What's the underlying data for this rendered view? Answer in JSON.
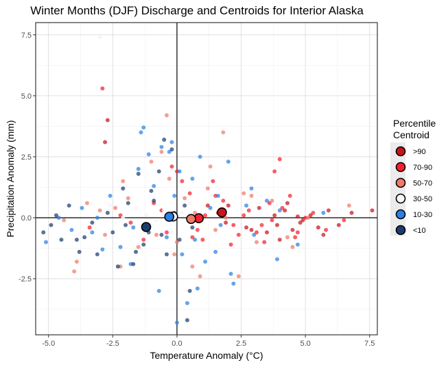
{
  "chart_data": {
    "type": "scatter",
    "title": "Winter Months (DJF) Discharge and Centroids for Interior Alaska",
    "xlabel": "Temperature Anomaly (°C)",
    "ylabel": "Precipitation Anomaly (mm)",
    "xlim": [
      -5.5,
      7.8
    ],
    "ylim": [
      -4.8,
      8.0
    ],
    "x_ticks": [
      -5.0,
      -2.5,
      0.0,
      2.5,
      5.0,
      7.5
    ],
    "x_tick_labels": [
      "-5.0",
      "-2.5",
      "0.0",
      "2.5",
      "5.0",
      "7.5"
    ],
    "y_ticks": [
      -2.5,
      0.0,
      2.5,
      5.0,
      7.5
    ],
    "y_tick_labels": [
      "-2.5",
      "0.0",
      "2.5",
      "5.0",
      "7.5"
    ],
    "grid": true,
    "legend": {
      "title_line1": "Percentile",
      "title_line2": "Centroid",
      "position": "right",
      "entries": [
        {
          "label": ">90",
          "color": "#c8141c"
        },
        {
          "label": "70-90",
          "color": "#f5202c"
        },
        {
          "label": "50-70",
          "color": "#f07a6a"
        },
        {
          "label": "30-50",
          "color": "#f2f6fb"
        },
        {
          "label": "10-30",
          "color": "#2b7fe6"
        },
        {
          "label": "<10",
          "color": "#1c3d6e"
        }
      ]
    },
    "centroids": [
      {
        "category": ">90",
        "x": 1.75,
        "y": 0.22
      },
      {
        "category": "70-90",
        "x": 0.85,
        "y": -0.02
      },
      {
        "category": "50-70",
        "x": 0.55,
        "y": -0.05
      },
      {
        "category": "30-50",
        "x": -0.15,
        "y": 0.05
      },
      {
        "category": "10-30",
        "x": -0.3,
        "y": 0.04
      },
      {
        "category": "<10",
        "x": -1.2,
        "y": -0.38
      }
    ],
    "series": [
      {
        "category": ">90",
        "points": [
          [
            4.2,
            0.3
          ],
          [
            4.8,
            -0.2
          ],
          [
            5.2,
            0.1
          ],
          [
            7.6,
            0.3
          ],
          [
            6.8,
            0.2
          ],
          [
            4.5,
            -0.5
          ],
          [
            3.9,
            -0.3
          ],
          [
            5.5,
            -0.4
          ],
          [
            4.7,
            0.05
          ],
          [
            2.0,
            0.5
          ],
          [
            1.6,
            0.2
          ],
          [
            3.5,
            -0.6
          ],
          [
            5.9,
            0.3
          ],
          [
            4.9,
            -0.1
          ],
          [
            6.3,
            -0.3
          ],
          [
            3.2,
            0.4
          ],
          [
            2.7,
            -0.4
          ],
          [
            4.3,
            0.6
          ],
          [
            3.8,
            0.1
          ],
          [
            5.7,
            -0.7
          ],
          [
            -2.7,
            4.0
          ],
          [
            -2.8,
            3.1
          ],
          [
            1.2,
            0.5
          ],
          [
            1.9,
            -0.2
          ],
          [
            4.0,
            -0.9
          ],
          [
            2.9,
            -0.5
          ]
        ]
      },
      {
        "category": "70-90",
        "points": [
          [
            3.8,
            1.9
          ],
          [
            4.0,
            2.4
          ],
          [
            1.4,
            1.5
          ],
          [
            2.6,
            0.1
          ],
          [
            3.1,
            -0.6
          ],
          [
            4.6,
            -0.8
          ],
          [
            5.0,
            0.0
          ],
          [
            -2.9,
            5.3
          ],
          [
            -0.9,
            0.6
          ],
          [
            0.5,
            1.0
          ],
          [
            1.0,
            -0.9
          ],
          [
            -0.4,
            -0.6
          ],
          [
            2.2,
            -0.3
          ],
          [
            3.4,
            -1.0
          ],
          [
            5.8,
            -0.5
          ],
          [
            6.5,
            -0.1
          ],
          [
            4.4,
            0.9
          ],
          [
            1.8,
            0.7
          ],
          [
            0.2,
            1.5
          ],
          [
            -1.3,
            -0.9
          ],
          [
            2.4,
            -0.7
          ],
          [
            3.7,
            -0.1
          ],
          [
            4.1,
            0.4
          ],
          [
            -0.6,
            0.3
          ],
          [
            0.8,
            -0.5
          ],
          [
            1.5,
            0.9
          ],
          [
            -2.2,
            0.1
          ],
          [
            2.8,
            0.3
          ],
          [
            3.3,
            -0.3
          ],
          [
            4.7,
            -0.6
          ],
          [
            -1.8,
            -0.2
          ],
          [
            0.0,
            1.9
          ],
          [
            1.1,
            0.1
          ],
          [
            -3.4,
            -0.4
          ],
          [
            -0.2,
            2.1
          ],
          [
            2.1,
            -1.1
          ],
          [
            3.6,
            0.6
          ],
          [
            5.3,
            0.2
          ],
          [
            0.6,
            -0.8
          ]
        ]
      },
      {
        "category": "50-70",
        "points": [
          [
            -0.4,
            4.2
          ],
          [
            1.8,
            3.5
          ],
          [
            6.7,
            0.5
          ],
          [
            -4.0,
            -2.2
          ],
          [
            -2.2,
            -2.0
          ],
          [
            -1.0,
            2.3
          ],
          [
            -3.9,
            -1.8
          ],
          [
            0.6,
            -2.0
          ],
          [
            0.9,
            -2.4
          ],
          [
            2.4,
            -2.4
          ],
          [
            -2.1,
            1.5
          ],
          [
            3.1,
            -1.0
          ],
          [
            1.5,
            -0.5
          ],
          [
            -0.8,
            -0.7
          ],
          [
            -3.0,
            0.3
          ],
          [
            -1.5,
            -1.2
          ],
          [
            0.3,
            0.8
          ],
          [
            2.6,
            1.0
          ],
          [
            4.5,
            -1.2
          ],
          [
            -2.8,
            -0.7
          ],
          [
            1.2,
            1.2
          ],
          [
            -0.3,
            1.6
          ],
          [
            -3.5,
            0.6
          ],
          [
            0.0,
            -1.0
          ],
          [
            1.9,
            0.0
          ],
          [
            -1.9,
            0.8
          ],
          [
            2.9,
            0.9
          ],
          [
            4.3,
            -0.8
          ],
          [
            -2.4,
            0.4
          ],
          [
            0.7,
            0.2
          ],
          [
            -1.1,
            -0.3
          ],
          [
            3.7,
            0.7
          ],
          [
            -0.6,
            2.7
          ],
          [
            5.1,
            0.0
          ],
          [
            1.3,
            2.1
          ],
          [
            -4.4,
            -0.1
          ],
          [
            -0.1,
            -1.5
          ]
        ]
      },
      {
        "category": "30-50",
        "points": [
          [
            -3.0,
            7.4
          ],
          [
            -2.6,
            0.5
          ],
          [
            -0.5,
            0.3
          ],
          [
            -1.2,
            0.1
          ],
          [
            0.5,
            0.6
          ],
          [
            1.0,
            -0.2
          ],
          [
            -0.2,
            -0.6
          ],
          [
            -1.6,
            0.4
          ],
          [
            -0.8,
            -0.1
          ],
          [
            0.2,
            0.2
          ],
          [
            -2.1,
            0.0
          ],
          [
            -1.0,
            -0.3
          ]
        ]
      },
      {
        "category": "10-30",
        "points": [
          [
            -0.3,
            2.7
          ],
          [
            -0.6,
            2.9
          ],
          [
            -1.3,
            3.7
          ],
          [
            -1.5,
            2.0
          ],
          [
            1.6,
            0.9
          ],
          [
            1.5,
            -1.4
          ],
          [
            2.0,
            2.3
          ],
          [
            2.9,
            1.2
          ],
          [
            4.7,
            -1.1
          ],
          [
            3.0,
            -0.7
          ],
          [
            -4.1,
            -0.5
          ],
          [
            -5.1,
            -1.0
          ],
          [
            -4.6,
            0.0
          ],
          [
            -3.3,
            -0.6
          ],
          [
            -2.9,
            -1.3
          ],
          [
            0.0,
            -4.3
          ],
          [
            0.4,
            -3.5
          ],
          [
            -0.7,
            -3.0
          ],
          [
            2.1,
            -2.3
          ],
          [
            2.2,
            -2.7
          ],
          [
            -1.4,
            3.5
          ],
          [
            -1.8,
            -1.9
          ],
          [
            0.6,
            1.6
          ],
          [
            1.3,
            0.4
          ],
          [
            -0.1,
            0.9
          ],
          [
            3.5,
            0.7
          ],
          [
            3.9,
            -1.7
          ],
          [
            -1.1,
            2.6
          ],
          [
            0.2,
            -1.5
          ],
          [
            0.9,
            2.5
          ],
          [
            -2.2,
            -1.2
          ],
          [
            -0.4,
            -0.8
          ],
          [
            1.7,
            -0.3
          ],
          [
            2.7,
            0.5
          ],
          [
            -3.7,
            0.4
          ],
          [
            -0.9,
            1.3
          ],
          [
            0.7,
            -0.9
          ],
          [
            5.7,
            0.2
          ],
          [
            -2.6,
            0.9
          ],
          [
            -1.7,
            -0.4
          ],
          [
            0.1,
            1.9
          ],
          [
            1.1,
            -1.8
          ],
          [
            -3.1,
            0.0
          ],
          [
            4.0,
            0.3
          ],
          [
            -0.2,
            3.1
          ],
          [
            0.8,
            -2.9
          ]
        ]
      },
      {
        "category": "<10",
        "points": [
          [
            -5.2,
            -0.6
          ],
          [
            -4.9,
            -0.3
          ],
          [
            -4.5,
            -0.9
          ],
          [
            -3.8,
            -1.4
          ],
          [
            -3.1,
            -1.5
          ],
          [
            -2.3,
            -2.0
          ],
          [
            -1.7,
            -1.9
          ],
          [
            -0.5,
            3.2
          ],
          [
            -0.2,
            2.8
          ],
          [
            0.4,
            -4.2
          ],
          [
            0.5,
            -3.0
          ],
          [
            -1.5,
            1.8
          ],
          [
            -1.0,
            1.1
          ],
          [
            -0.6,
            -0.7
          ],
          [
            -2.0,
            -0.3
          ],
          [
            -3.6,
            -0.8
          ],
          [
            -4.2,
            0.5
          ],
          [
            -2.7,
            0.2
          ],
          [
            -1.3,
            -1.1
          ],
          [
            0.1,
            -0.9
          ],
          [
            -0.9,
            0.7
          ],
          [
            -3.3,
            -0.2
          ],
          [
            -1.9,
            0.6
          ],
          [
            -0.4,
            -1.5
          ],
          [
            0.3,
            0.5
          ],
          [
            -2.5,
            -0.6
          ],
          [
            -1.1,
            -0.6
          ],
          [
            -4.7,
            0.1
          ],
          [
            -3.9,
            -0.9
          ],
          [
            -0.7,
            1.9
          ],
          [
            0.6,
            -0.4
          ],
          [
            -2.1,
            1.2
          ],
          [
            -1.6,
            -1.4
          ],
          [
            -0.1,
            0.2
          ]
        ]
      }
    ]
  }
}
